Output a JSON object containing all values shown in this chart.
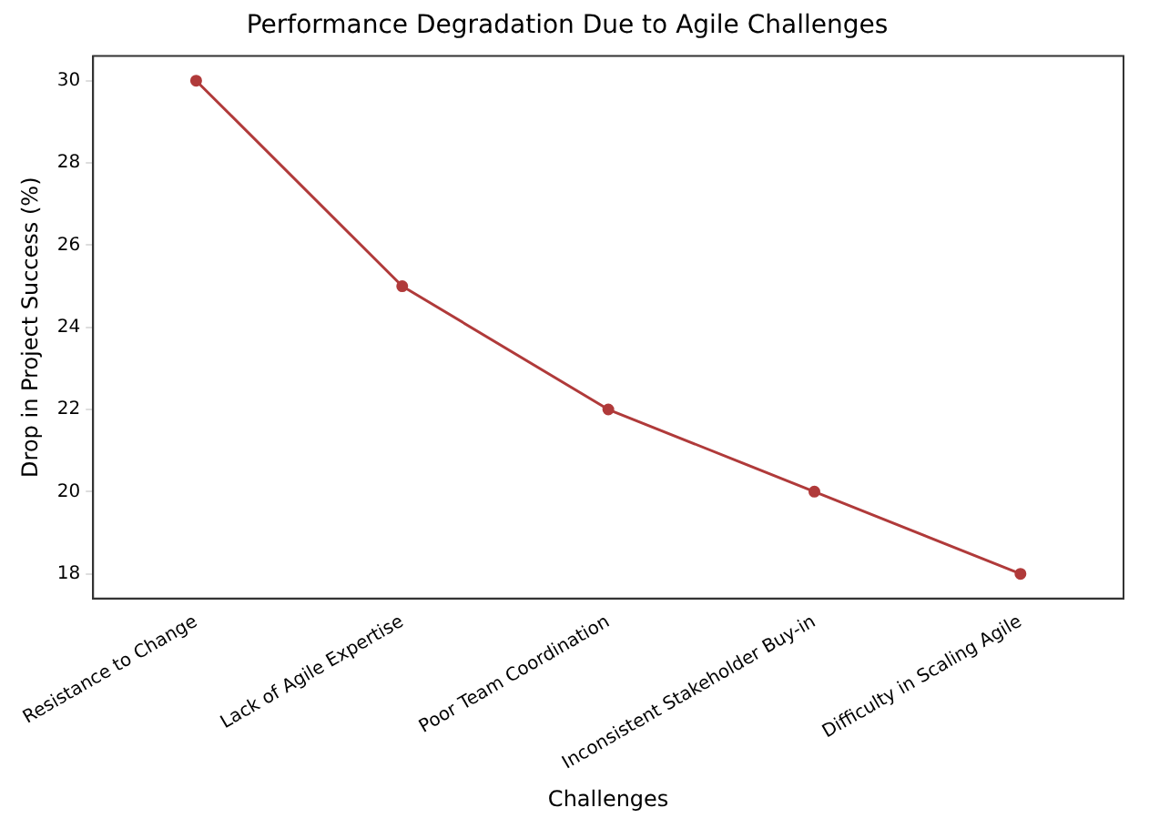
{
  "chart_data": {
    "type": "line",
    "title": "Performance Degradation Due to Agile Challenges",
    "xlabel": "Challenges",
    "ylabel": "Drop in Project Success (%)",
    "categories": [
      "Resistance to Change",
      "Lack of Agile Expertise",
      "Poor Team Coordination",
      "Inconsistent Stakeholder Buy-in",
      "Difficulty in Scaling Agile"
    ],
    "series": [
      {
        "color": "#b03a3a",
        "values": [
          30,
          25,
          22,
          20,
          18
        ]
      }
    ],
    "ylim": [
      17.4,
      30.6
    ],
    "yticks": [
      18,
      20,
      22,
      24,
      26,
      28,
      30
    ],
    "grid": false,
    "legend": false,
    "marker": "circle",
    "line_style": "solid"
  }
}
